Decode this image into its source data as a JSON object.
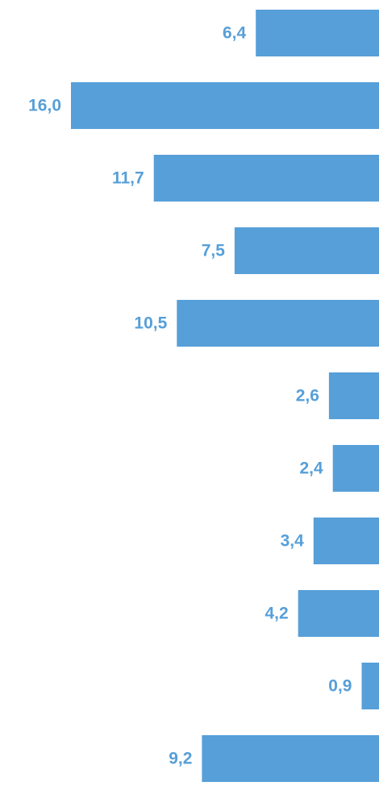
{
  "chart_data": {
    "type": "bar",
    "orientation": "horizontal",
    "bar_direction": "right-to-left",
    "categories": [
      "",
      "",
      "",
      "",
      "",
      "",
      "",
      "",
      "",
      "",
      ""
    ],
    "values": [
      6.4,
      16.0,
      11.7,
      7.5,
      10.5,
      2.6,
      2.4,
      3.4,
      4.2,
      0.9,
      9.2
    ],
    "value_labels": [
      "6,4",
      "16,0",
      "11,7",
      "7,5",
      "10,5",
      "2,6",
      "2,4",
      "3,4",
      "4,2",
      "0,9",
      "9,2"
    ],
    "title": "",
    "xlabel": "",
    "ylabel": "",
    "xlim": [
      0,
      16.0
    ],
    "grid": false,
    "bar_color": "#579fd8",
    "label_color": "#579fd8"
  }
}
